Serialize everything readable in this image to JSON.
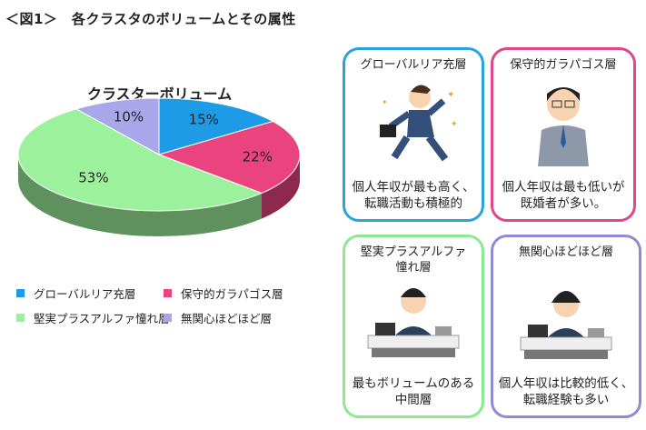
{
  "figure_title": "＜図1＞　各クラスタのボリュームとその属性",
  "chart_data": {
    "type": "pie",
    "title": "クラスターボリューム",
    "categories": [
      "グローバルリア充層",
      "保守的ガラパゴス層",
      "堅実プラスアルファ憧れ層",
      "無関心ほどほど層"
    ],
    "values": [
      15,
      22,
      53,
      10
    ],
    "labels": [
      "15%",
      "22%",
      "53%",
      "10%"
    ],
    "colors": [
      "#1e9be6",
      "#e9447e",
      "#9cf29c",
      "#a9a6ea"
    ],
    "legend_position": "bottom",
    "style": "3d"
  },
  "cards": [
    {
      "title": "グローバルリア充層",
      "desc": [
        "個人年収が最も高く、",
        "転職活動も積極的"
      ],
      "border": "#2aa3dd",
      "icon": "running-businessman"
    },
    {
      "title": "保守的ガラパゴス層",
      "desc": [
        "個人年収は最も低いが",
        "既婚者が多い。"
      ],
      "border": "#e0468a",
      "icon": "worker-in-uniform"
    },
    {
      "title": "堅実プラスアルファ",
      "title2": "憧れ層",
      "desc": [
        "最もボリュームのある",
        "中間層"
      ],
      "border": "#8ee88e",
      "icon": "businessman-on-phone-at-desk"
    },
    {
      "title": "無関心ほどほど層",
      "desc": [
        "個人年収は比較的低く、",
        "転職経験も多い"
      ],
      "border": "#8f8ad6",
      "icon": "relaxed-man-at-desk"
    }
  ]
}
